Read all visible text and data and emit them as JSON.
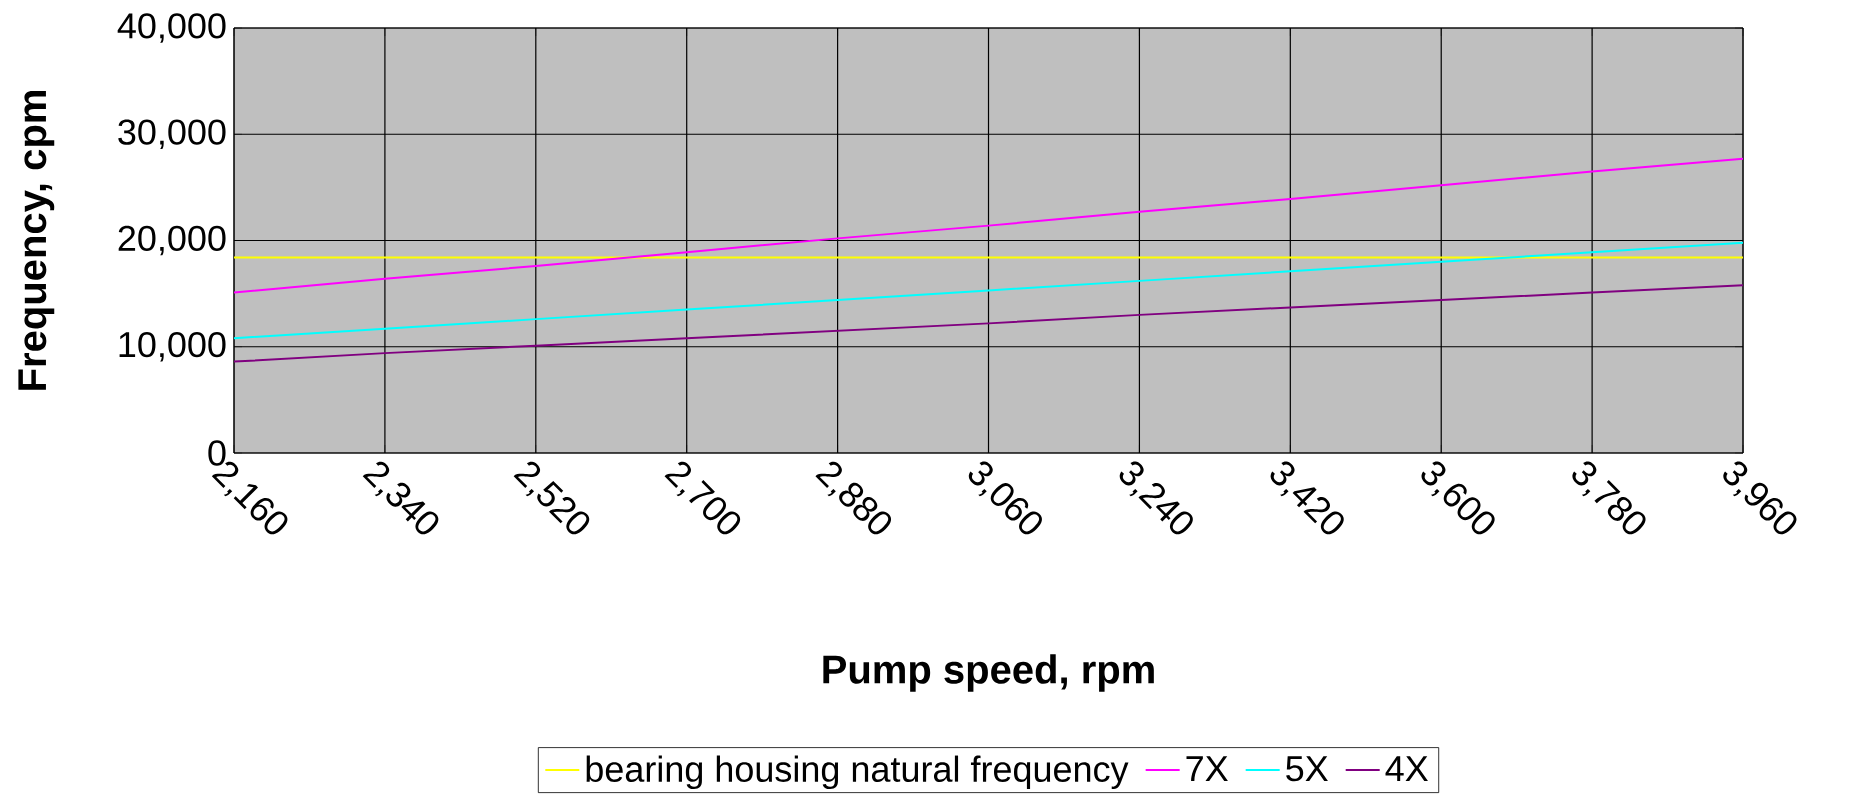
{
  "chart_data": {
    "type": "line",
    "xlabel": "Pump speed, rpm",
    "ylabel": "Frequency, cpm",
    "categories": [
      "2,160",
      "2,340",
      "2,520",
      "2,700",
      "2,880",
      "3,060",
      "3,240",
      "3,420",
      "3,600",
      "3,780",
      "3,960"
    ],
    "series": [
      {
        "name": "bearing housing  natural frequency",
        "color": "#ffff00",
        "values": [
          18400,
          18400,
          18400,
          18400,
          18400,
          18400,
          18400,
          18400,
          18400,
          18400,
          18400
        ]
      },
      {
        "name": "7X",
        "color": "#ff00ff",
        "values": [
          15100,
          16400,
          17600,
          18900,
          20200,
          21400,
          22700,
          23900,
          25200,
          26500,
          27700
        ]
      },
      {
        "name": "5X",
        "color": "#00ffff",
        "values": [
          10800,
          11700,
          12600,
          13500,
          14400,
          15300,
          16200,
          17100,
          18000,
          18900,
          19800
        ]
      },
      {
        "name": "4X",
        "color": "#800080",
        "values": [
          8600,
          9400,
          10100,
          10800,
          11500,
          12200,
          13000,
          13700,
          14400,
          15100,
          15800
        ]
      }
    ],
    "ylim": [
      0,
      40000
    ],
    "yticks": [
      0,
      {
        "value": 10000,
        "label": "10,000"
      },
      {
        "value": 20000,
        "label": "20,000"
      },
      {
        "value": 30000,
        "label": "30,000"
      },
      {
        "value": 40000,
        "label": "40,000"
      }
    ],
    "grid": true,
    "legend": "bottom"
  }
}
